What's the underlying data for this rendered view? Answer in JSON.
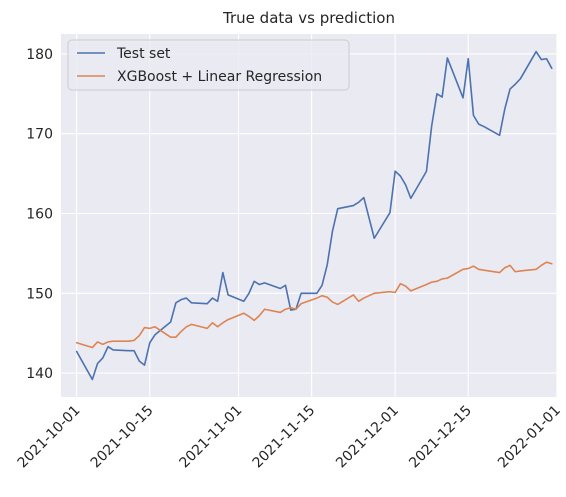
{
  "chart_data": {
    "type": "line",
    "title": "True data vs prediction",
    "xlabel": "",
    "ylabel": "",
    "x_axis_type": "date",
    "xlim": [
      "2021-09-28",
      "2022-01-01"
    ],
    "ylim": [
      137.0,
      182.5
    ],
    "grid": true,
    "legend_position": "top-left",
    "x_ticks": [
      "2021-10-01",
      "2021-10-15",
      "2021-11-01",
      "2021-11-15",
      "2021-12-01",
      "2021-12-15",
      "2022-01-01"
    ],
    "y_ticks": [
      140,
      150,
      160,
      170,
      180
    ],
    "series": [
      {
        "name": "Test set",
        "color": "#4c72b0",
        "points": [
          [
            "2021-10-01",
            142.7
          ],
          [
            "2021-10-04",
            139.2
          ],
          [
            "2021-10-05",
            141.2
          ],
          [
            "2021-10-06",
            141.9
          ],
          [
            "2021-10-07",
            143.3
          ],
          [
            "2021-10-08",
            142.9
          ],
          [
            "2021-10-11",
            142.8
          ],
          [
            "2021-10-12",
            142.8
          ],
          [
            "2021-10-13",
            141.5
          ],
          [
            "2021-10-14",
            141.0
          ],
          [
            "2021-10-15",
            143.8
          ],
          [
            "2021-10-16",
            144.8
          ],
          [
            "2021-10-19",
            146.4
          ],
          [
            "2021-10-20",
            148.8
          ],
          [
            "2021-10-21",
            149.2
          ],
          [
            "2021-10-22",
            149.4
          ],
          [
            "2021-10-23",
            148.8
          ],
          [
            "2021-10-26",
            148.7
          ],
          [
            "2021-10-27",
            149.4
          ],
          [
            "2021-10-28",
            149.0
          ],
          [
            "2021-10-29",
            152.6
          ],
          [
            "2021-10-30",
            149.8
          ],
          [
            "2021-11-02",
            149.0
          ],
          [
            "2021-11-03",
            150.0
          ],
          [
            "2021-11-04",
            151.5
          ],
          [
            "2021-11-05",
            151.1
          ],
          [
            "2021-11-06",
            151.3
          ],
          [
            "2021-11-09",
            150.6
          ],
          [
            "2021-11-10",
            151.0
          ],
          [
            "2021-11-11",
            147.9
          ],
          [
            "2021-11-12",
            148.0
          ],
          [
            "2021-11-13",
            150.0
          ],
          [
            "2021-11-16",
            150.0
          ],
          [
            "2021-11-17",
            151.0
          ],
          [
            "2021-11-18",
            153.6
          ],
          [
            "2021-11-19",
            157.8
          ],
          [
            "2021-11-20",
            160.6
          ],
          [
            "2021-11-23",
            161.0
          ],
          [
            "2021-11-24",
            161.4
          ],
          [
            "2021-11-25",
            162.0
          ],
          [
            "2021-11-27",
            156.9
          ],
          [
            "2021-11-30",
            160.1
          ],
          [
            "2021-12-01",
            165.3
          ],
          [
            "2021-12-02",
            164.7
          ],
          [
            "2021-12-03",
            163.6
          ],
          [
            "2021-12-04",
            161.9
          ],
          [
            "2021-12-07",
            165.3
          ],
          [
            "2021-12-08",
            171.0
          ],
          [
            "2021-12-09",
            175.0
          ],
          [
            "2021-12-10",
            174.6
          ],
          [
            "2021-12-11",
            179.5
          ],
          [
            "2021-12-14",
            174.5
          ],
          [
            "2021-12-15",
            179.4
          ],
          [
            "2021-12-16",
            172.3
          ],
          [
            "2021-12-17",
            171.2
          ],
          [
            "2021-12-18",
            170.9
          ],
          [
            "2021-12-21",
            169.8
          ],
          [
            "2021-12-22",
            173.1
          ],
          [
            "2021-12-23",
            175.6
          ],
          [
            "2021-12-24",
            176.2
          ],
          [
            "2021-12-25",
            176.9
          ],
          [
            "2021-12-28",
            180.3
          ],
          [
            "2021-12-29",
            179.3
          ],
          [
            "2021-12-30",
            179.4
          ],
          [
            "2021-12-31",
            178.2
          ]
        ]
      },
      {
        "name": "XGBoost + Linear Regression",
        "color": "#dd8452",
        "points": [
          [
            "2021-10-01",
            143.8
          ],
          [
            "2021-10-04",
            143.2
          ],
          [
            "2021-10-05",
            143.9
          ],
          [
            "2021-10-06",
            143.6
          ],
          [
            "2021-10-07",
            143.9
          ],
          [
            "2021-10-08",
            144.0
          ],
          [
            "2021-10-11",
            144.0
          ],
          [
            "2021-10-12",
            144.1
          ],
          [
            "2021-10-13",
            144.7
          ],
          [
            "2021-10-14",
            145.7
          ],
          [
            "2021-10-15",
            145.6
          ],
          [
            "2021-10-16",
            145.8
          ],
          [
            "2021-10-19",
            144.5
          ],
          [
            "2021-10-20",
            144.5
          ],
          [
            "2021-10-21",
            145.2
          ],
          [
            "2021-10-22",
            145.8
          ],
          [
            "2021-10-23",
            146.1
          ],
          [
            "2021-10-26",
            145.6
          ],
          [
            "2021-10-27",
            146.3
          ],
          [
            "2021-10-28",
            145.8
          ],
          [
            "2021-10-29",
            146.3
          ],
          [
            "2021-10-30",
            146.7
          ],
          [
            "2021-11-02",
            147.5
          ],
          [
            "2021-11-03",
            147.1
          ],
          [
            "2021-11-04",
            146.6
          ],
          [
            "2021-11-05",
            147.2
          ],
          [
            "2021-11-06",
            148.0
          ],
          [
            "2021-11-09",
            147.6
          ],
          [
            "2021-11-10",
            148.0
          ],
          [
            "2021-11-11",
            148.2
          ],
          [
            "2021-11-12",
            148.0
          ],
          [
            "2021-11-13",
            148.7
          ],
          [
            "2021-11-16",
            149.4
          ],
          [
            "2021-11-17",
            149.7
          ],
          [
            "2021-11-18",
            149.5
          ],
          [
            "2021-11-19",
            148.9
          ],
          [
            "2021-11-20",
            148.6
          ],
          [
            "2021-11-23",
            149.8
          ],
          [
            "2021-11-24",
            149.0
          ],
          [
            "2021-11-25",
            149.4
          ],
          [
            "2021-11-27",
            150.0
          ],
          [
            "2021-11-30",
            150.2
          ],
          [
            "2021-12-01",
            150.1
          ],
          [
            "2021-12-02",
            151.2
          ],
          [
            "2021-12-03",
            150.9
          ],
          [
            "2021-12-04",
            150.3
          ],
          [
            "2021-12-07",
            151.1
          ],
          [
            "2021-12-08",
            151.4
          ],
          [
            "2021-12-09",
            151.5
          ],
          [
            "2021-12-10",
            151.8
          ],
          [
            "2021-12-11",
            151.9
          ],
          [
            "2021-12-14",
            153.0
          ],
          [
            "2021-12-15",
            153.1
          ],
          [
            "2021-12-16",
            153.4
          ],
          [
            "2021-12-17",
            153.0
          ],
          [
            "2021-12-18",
            152.9
          ],
          [
            "2021-12-21",
            152.6
          ],
          [
            "2021-12-22",
            153.2
          ],
          [
            "2021-12-23",
            153.5
          ],
          [
            "2021-12-24",
            152.7
          ],
          [
            "2021-12-25",
            152.8
          ],
          [
            "2021-12-28",
            153.0
          ],
          [
            "2021-12-29",
            153.5
          ],
          [
            "2021-12-30",
            153.9
          ],
          [
            "2021-12-31",
            153.7
          ]
        ]
      }
    ]
  }
}
